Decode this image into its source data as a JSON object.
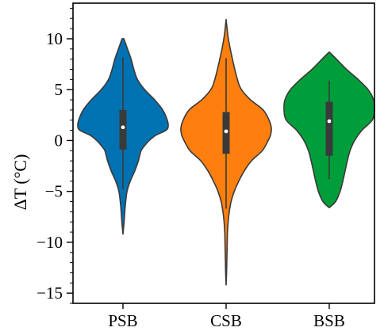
{
  "chart_data": {
    "type": "violin",
    "title": "",
    "xlabel": "",
    "ylabel": "ΔT (°C)",
    "ylim": [
      -16,
      13.5
    ],
    "yticks": [
      10,
      5,
      0,
      -5,
      -10,
      -15
    ],
    "ytick_labels": [
      "10",
      "5",
      "0",
      "−5",
      "−10",
      "−15"
    ],
    "minor_tick_step": 1,
    "grid": false,
    "legend": "none",
    "categories": [
      "PSB",
      "CSB",
      "BSB"
    ],
    "series": [
      {
        "category": "PSB",
        "color": "#0072B2",
        "min": -9.2,
        "max": 10.0,
        "q1": -0.9,
        "median": 1.3,
        "q3": 3.0,
        "whisker_low": -4.8,
        "whisker_high": 8.2,
        "density": [
          [
            10.0,
            0.02
          ],
          [
            9.0,
            0.1
          ],
          [
            8.0,
            0.18
          ],
          [
            7.0,
            0.24
          ],
          [
            6.0,
            0.32
          ],
          [
            5.0,
            0.48
          ],
          [
            4.0,
            0.7
          ],
          [
            3.0,
            0.88
          ],
          [
            2.0,
            0.98
          ],
          [
            1.4,
            1.0
          ],
          [
            1.0,
            0.95
          ],
          [
            0.5,
            0.72
          ],
          [
            0.0,
            0.58
          ],
          [
            -0.5,
            0.48
          ],
          [
            -1.0,
            0.4
          ],
          [
            -2.0,
            0.34
          ],
          [
            -3.0,
            0.26
          ],
          [
            -4.0,
            0.16
          ],
          [
            -5.0,
            0.09
          ],
          [
            -6.0,
            0.06
          ],
          [
            -7.0,
            0.04
          ],
          [
            -8.0,
            0.025
          ],
          [
            -9.2,
            0.0
          ]
        ]
      },
      {
        "category": "CSB",
        "color": "#FF7F0E",
        "min": -14.2,
        "max": 11.9,
        "q1": -1.3,
        "median": 0.9,
        "q3": 2.8,
        "whisker_low": -6.7,
        "whisker_high": 8.1,
        "density": [
          [
            11.9,
            0.0
          ],
          [
            10.0,
            0.05
          ],
          [
            8.0,
            0.14
          ],
          [
            6.0,
            0.25
          ],
          [
            5.0,
            0.34
          ],
          [
            4.0,
            0.54
          ],
          [
            3.0,
            0.82
          ],
          [
            2.0,
            0.95
          ],
          [
            1.2,
            1.0
          ],
          [
            0.5,
            0.98
          ],
          [
            0.0,
            0.93
          ],
          [
            -1.0,
            0.8
          ],
          [
            -2.0,
            0.56
          ],
          [
            -3.0,
            0.4
          ],
          [
            -4.0,
            0.28
          ],
          [
            -5.0,
            0.18
          ],
          [
            -6.0,
            0.11
          ],
          [
            -7.0,
            0.07
          ],
          [
            -8.0,
            0.045
          ],
          [
            -9.0,
            0.03
          ],
          [
            -10.0,
            0.025
          ],
          [
            -11.0,
            0.02
          ],
          [
            -12.0,
            0.015
          ],
          [
            -13.0,
            0.01
          ],
          [
            -14.2,
            0.0
          ]
        ]
      },
      {
        "category": "BSB",
        "color": "#009E3A",
        "min": -6.6,
        "max": 8.7,
        "q1": -1.5,
        "median": 1.9,
        "q3": 3.8,
        "whisker_low": -3.8,
        "whisker_high": 5.9,
        "density": [
          [
            8.7,
            0.0
          ],
          [
            8.0,
            0.16
          ],
          [
            7.0,
            0.38
          ],
          [
            6.0,
            0.64
          ],
          [
            5.0,
            0.86
          ],
          [
            4.0,
            0.98
          ],
          [
            3.0,
            1.0
          ],
          [
            2.0,
            0.95
          ],
          [
            1.0,
            0.72
          ],
          [
            0.0,
            0.56
          ],
          [
            -1.0,
            0.46
          ],
          [
            -2.0,
            0.4
          ],
          [
            -3.0,
            0.35
          ],
          [
            -4.0,
            0.3
          ],
          [
            -5.0,
            0.24
          ],
          [
            -6.0,
            0.14
          ],
          [
            -6.6,
            0.0
          ]
        ]
      }
    ]
  }
}
